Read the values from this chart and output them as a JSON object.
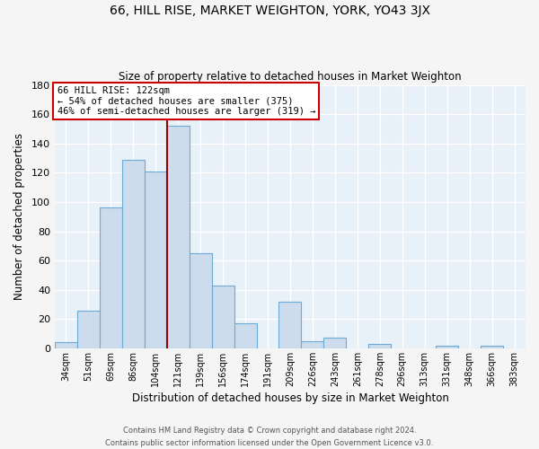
{
  "title": "66, HILL RISE, MARKET WEIGHTON, YORK, YO43 3JX",
  "subtitle": "Size of property relative to detached houses in Market Weighton",
  "xlabel": "Distribution of detached houses by size in Market Weighton",
  "ylabel": "Number of detached properties",
  "bar_color": "#ccdcec",
  "bar_edge_color": "#6aaad4",
  "background_color": "#e8f0f8",
  "grid_color": "#ffffff",
  "categories": [
    "34sqm",
    "51sqm",
    "69sqm",
    "86sqm",
    "104sqm",
    "121sqm",
    "139sqm",
    "156sqm",
    "174sqm",
    "191sqm",
    "209sqm",
    "226sqm",
    "243sqm",
    "261sqm",
    "278sqm",
    "296sqm",
    "313sqm",
    "331sqm",
    "348sqm",
    "366sqm",
    "383sqm"
  ],
  "values": [
    4,
    26,
    96,
    129,
    121,
    152,
    65,
    43,
    17,
    0,
    32,
    5,
    7,
    0,
    3,
    0,
    0,
    2,
    0,
    2,
    0
  ],
  "ylim": [
    0,
    180
  ],
  "yticks": [
    0,
    20,
    40,
    60,
    80,
    100,
    120,
    140,
    160,
    180
  ],
  "vline_color": "#990000",
  "annotation_title": "66 HILL RISE: 122sqm",
  "annotation_line1": "← 54% of detached houses are smaller (375)",
  "annotation_line2": "46% of semi-detached houses are larger (319) →",
  "annotation_box_color": "#ffffff",
  "annotation_box_edge": "#cc0000",
  "footer1": "Contains HM Land Registry data © Crown copyright and database right 2024.",
  "footer2": "Contains public sector information licensed under the Open Government Licence v3.0.",
  "fig_bg": "#f5f5f5",
  "figsize": [
    6.0,
    5.0
  ],
  "dpi": 100
}
